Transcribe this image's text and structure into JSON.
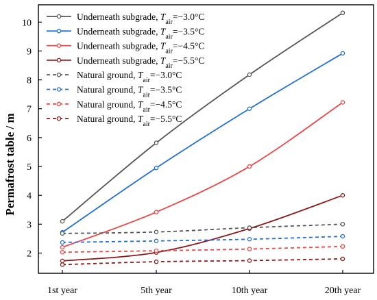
{
  "chart_data": {
    "type": "line",
    "title": "",
    "xlabel": "",
    "ylabel": "Permafrost table / m",
    "categories": [
      "1st year",
      "5th year",
      "10th year",
      "20th year"
    ],
    "ylim": [
      1.3,
      10.6
    ],
    "yticks": [
      2,
      3,
      4,
      5,
      6,
      7,
      8,
      9,
      10
    ],
    "grid": false,
    "legend_position": "top-left",
    "series": [
      {
        "name": "Underneath subgrade, T_air=−3.0°C",
        "label_prefix": "Underneath subgrade, ",
        "label_value": "=−3.0°C",
        "color": "#555555",
        "dash": false,
        "values": [
          3.1,
          5.82,
          8.18,
          10.32
        ]
      },
      {
        "name": "Underneath subgrade, T_air=−3.5°C",
        "label_prefix": "Underneath subgrade, ",
        "label_value": "=−3.5°C",
        "color": "#1f6fd6",
        "dash": false,
        "values": [
          2.72,
          4.95,
          7.0,
          8.92
        ]
      },
      {
        "name": "Underneath subgrade, T_air=−4.5°C",
        "label_prefix": "Underneath subgrade, ",
        "label_value": "=−4.5°C",
        "color": "#ee4444",
        "dash": false,
        "values": [
          2.2,
          3.42,
          5.0,
          7.22
        ]
      },
      {
        "name": "Underneath subgrade, T_air=−5.5°C",
        "label_prefix": "Underneath subgrade, ",
        "label_value": "=−5.5°C",
        "color": "#8b1a1a",
        "dash": false,
        "values": [
          1.73,
          2.02,
          2.85,
          4.0
        ]
      },
      {
        "name": "Natural ground, T_air=−3.0°C",
        "label_prefix": "Natural ground, ",
        "label_value": "=−3.0°C",
        "color": "#555555",
        "dash": true,
        "values": [
          2.68,
          2.73,
          2.88,
          3.0
        ]
      },
      {
        "name": "Natural ground, T_air=−3.5°C",
        "label_prefix": "Natural ground, ",
        "label_value": "=−3.5°C",
        "color": "#1f6fd6",
        "dash": true,
        "values": [
          2.37,
          2.42,
          2.48,
          2.58
        ]
      },
      {
        "name": "Natural ground, T_air=−4.5°C",
        "label_prefix": "Natural ground, ",
        "label_value": "=−4.5°C",
        "color": "#ee4444",
        "dash": true,
        "values": [
          2.03,
          2.08,
          2.14,
          2.23
        ]
      },
      {
        "name": "Natural ground, T_air=−5.5°C",
        "label_prefix": "Natural ground, ",
        "label_value": "=−5.5°C",
        "color": "#8b1a1a",
        "dash": true,
        "values": [
          1.6,
          1.7,
          1.74,
          1.8
        ]
      }
    ]
  }
}
